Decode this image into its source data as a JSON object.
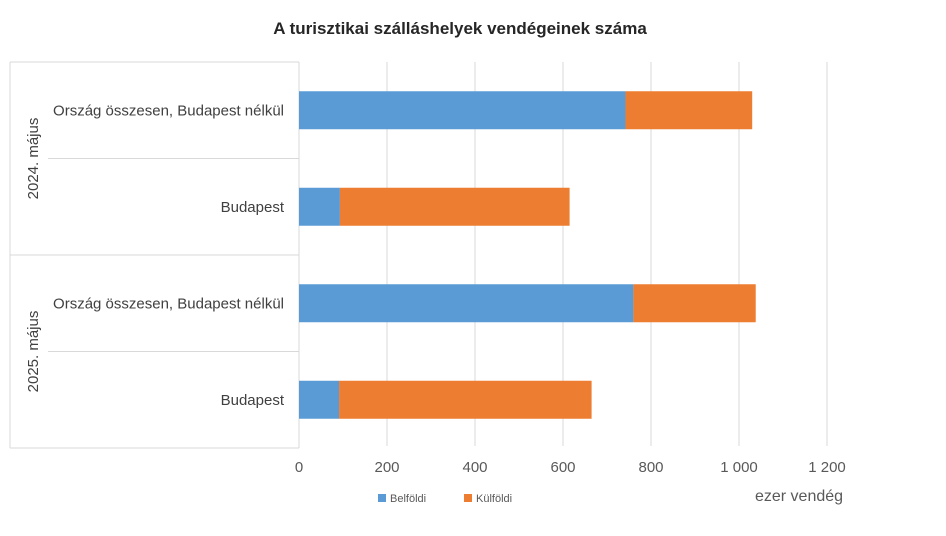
{
  "chart_data": {
    "type": "bar",
    "orientation": "horizontal",
    "stacked": true,
    "title": "A turisztikai szálláshelyek vendégeinek száma",
    "xlabel": "ezer vendég",
    "xlim": [
      0,
      1200
    ],
    "x_ticks": [
      {
        "value": 0,
        "label": "0"
      },
      {
        "value": 200,
        "label": "200"
      },
      {
        "value": 400,
        "label": "400"
      },
      {
        "value": 600,
        "label": "600"
      },
      {
        "value": 800,
        "label": "800"
      },
      {
        "value": 1000,
        "label": "1 000"
      },
      {
        "value": 1200,
        "label": "1 200"
      }
    ],
    "grid": true,
    "legend_position": "bottom",
    "groups": [
      {
        "label": "2024. május",
        "categories": [
          "Ország összesen, Budapest nélkül",
          "Budapest"
        ]
      },
      {
        "label": "2025. május",
        "categories": [
          "Ország összesen, Budapest nélkül",
          "Budapest"
        ]
      }
    ],
    "series": [
      {
        "name": "Belföldi",
        "color": "#5b9bd5",
        "values": [
          742,
          93,
          760,
          91
        ]
      },
      {
        "name": "Külföldi",
        "color": "#ed7d31",
        "values": [
          288,
          522,
          278,
          574
        ]
      }
    ]
  }
}
